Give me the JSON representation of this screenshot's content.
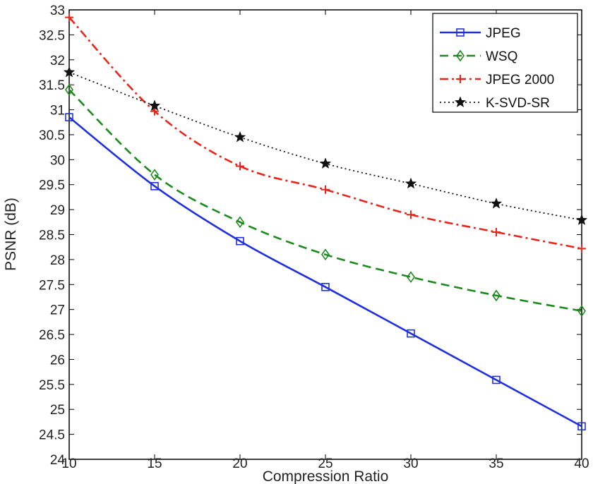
{
  "chart_data": {
    "type": "line",
    "title": "",
    "xlabel": "Compression Ratio",
    "ylabel": "PSNR (dB)",
    "xlim": [
      10,
      40
    ],
    "ylim": [
      24,
      33
    ],
    "xticks": [
      10,
      15,
      20,
      25,
      30,
      35,
      40
    ],
    "yticks": [
      24,
      24.5,
      25,
      25.5,
      26,
      26.5,
      27,
      27.5,
      28,
      28.5,
      29,
      29.5,
      30,
      30.5,
      31,
      31.5,
      32,
      32.5,
      33
    ],
    "grid": false,
    "legend_position": "top-right",
    "x": [
      10,
      15,
      20,
      25,
      30,
      35,
      40
    ],
    "series": [
      {
        "name": "JPEG",
        "values": [
          30.85,
          29.47,
          28.37,
          27.45,
          26.52,
          25.59,
          24.66
        ],
        "color": "#1f2fe0",
        "line_style": "solid",
        "marker": "square"
      },
      {
        "name": "WSQ",
        "values": [
          31.4,
          29.7,
          28.75,
          28.1,
          27.65,
          27.28,
          26.97
        ],
        "color": "#1c8a1c",
        "line_style": "dashed",
        "marker": "diamond"
      },
      {
        "name": "JPEG 2000",
        "values": [
          32.85,
          30.97,
          29.87,
          29.4,
          28.9,
          28.55,
          28.22
        ],
        "color": "#e8251b",
        "line_style": "dashdot",
        "marker": "plus"
      },
      {
        "name": "K-SVD-SR",
        "values": [
          31.75,
          31.08,
          30.45,
          29.92,
          29.52,
          29.12,
          28.79
        ],
        "color": "#111111",
        "line_style": "dotted",
        "marker": "star"
      }
    ]
  }
}
